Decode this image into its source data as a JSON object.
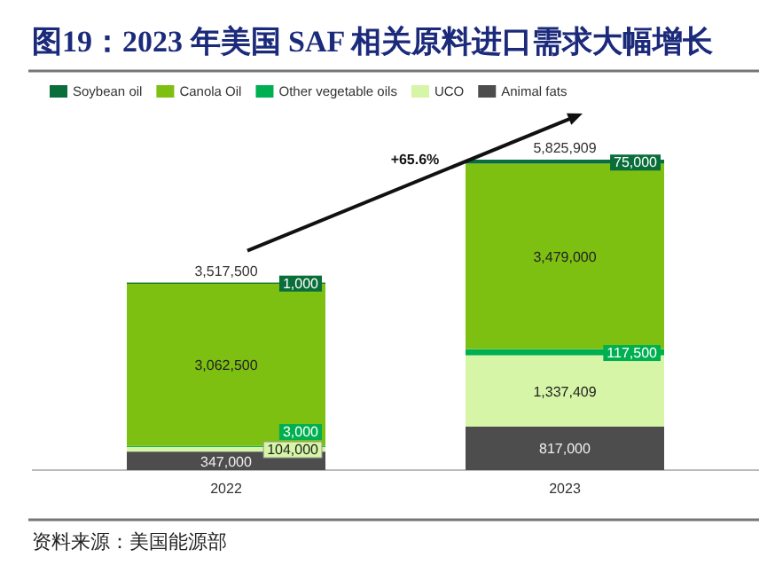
{
  "chart_data": {
    "type": "bar",
    "stacked": true,
    "title": "图19：2023 年美国 SAF 相关原料进口需求大幅增长",
    "categories": [
      "2022",
      "2023"
    ],
    "series": [
      {
        "name": "Animal fats",
        "color": "#4d4d4d",
        "values": [
          347000,
          817000
        ],
        "value_labels": [
          "347,000",
          "817,000"
        ]
      },
      {
        "name": "UCO",
        "color": "#d6f5a6",
        "values": [
          104000,
          1337409
        ],
        "value_labels": [
          "104,000",
          "1,337,409"
        ]
      },
      {
        "name": "Other vegetable oils",
        "color": "#00b050",
        "values": [
          3000,
          117500
        ],
        "value_labels": [
          "3,000",
          "117,500"
        ]
      },
      {
        "name": "Canola Oil",
        "color": "#7dc012",
        "values": [
          3062500,
          3479000
        ],
        "value_labels": [
          "3,062,500",
          "3,479,000"
        ]
      },
      {
        "name": "Soybean oil",
        "color": "#0a6e3a",
        "values": [
          1000,
          75000
        ],
        "value_labels": [
          "1,000",
          "75,000"
        ]
      }
    ],
    "totals": [
      "3,517,500",
      "5,825,909"
    ],
    "legend": "top",
    "annotations": [
      "+65.6%",
      "资料来源：美国能源部"
    ]
  }
}
